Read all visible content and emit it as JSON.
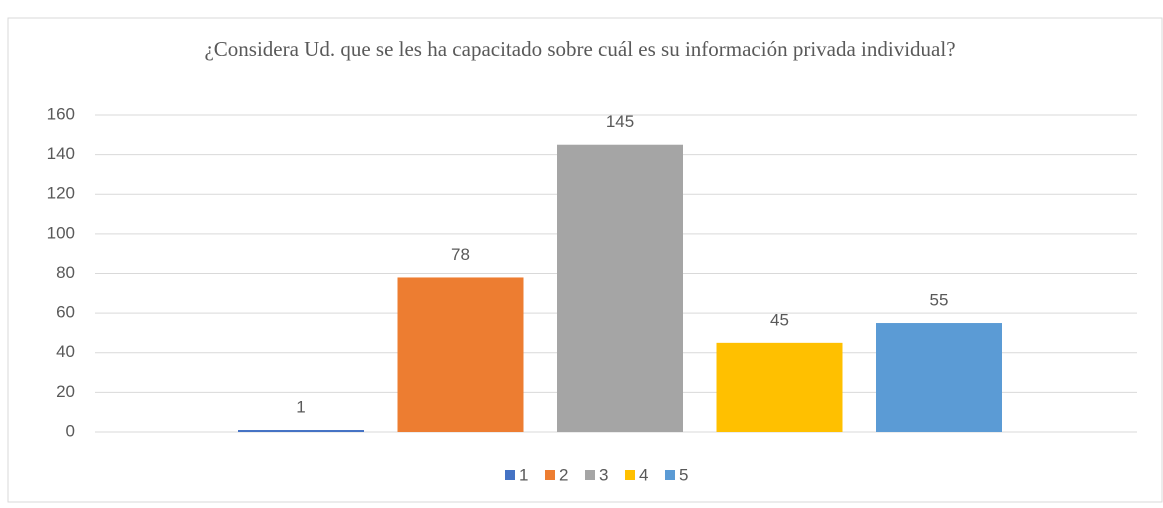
{
  "chart_data": {
    "type": "bar",
    "title": "¿Considera Ud. que se les ha capacitado sobre cuál es su información privada individual?",
    "categories": [
      null
    ],
    "series": [
      {
        "name": "1",
        "color": "#4472c4",
        "values": [
          1
        ]
      },
      {
        "name": "2",
        "color": "#ed7d31",
        "values": [
          78
        ]
      },
      {
        "name": "3",
        "color": "#a5a5a5",
        "values": [
          145
        ]
      },
      {
        "name": "4",
        "color": "#ffc000",
        "values": [
          45
        ]
      },
      {
        "name": "5",
        "color": "#5b9bd5",
        "values": [
          55
        ]
      }
    ],
    "ylim": [
      0,
      160
    ],
    "yticks": [
      0,
      20,
      40,
      60,
      80,
      100,
      120,
      140,
      160
    ],
    "grid": true,
    "legend": "bottom"
  }
}
